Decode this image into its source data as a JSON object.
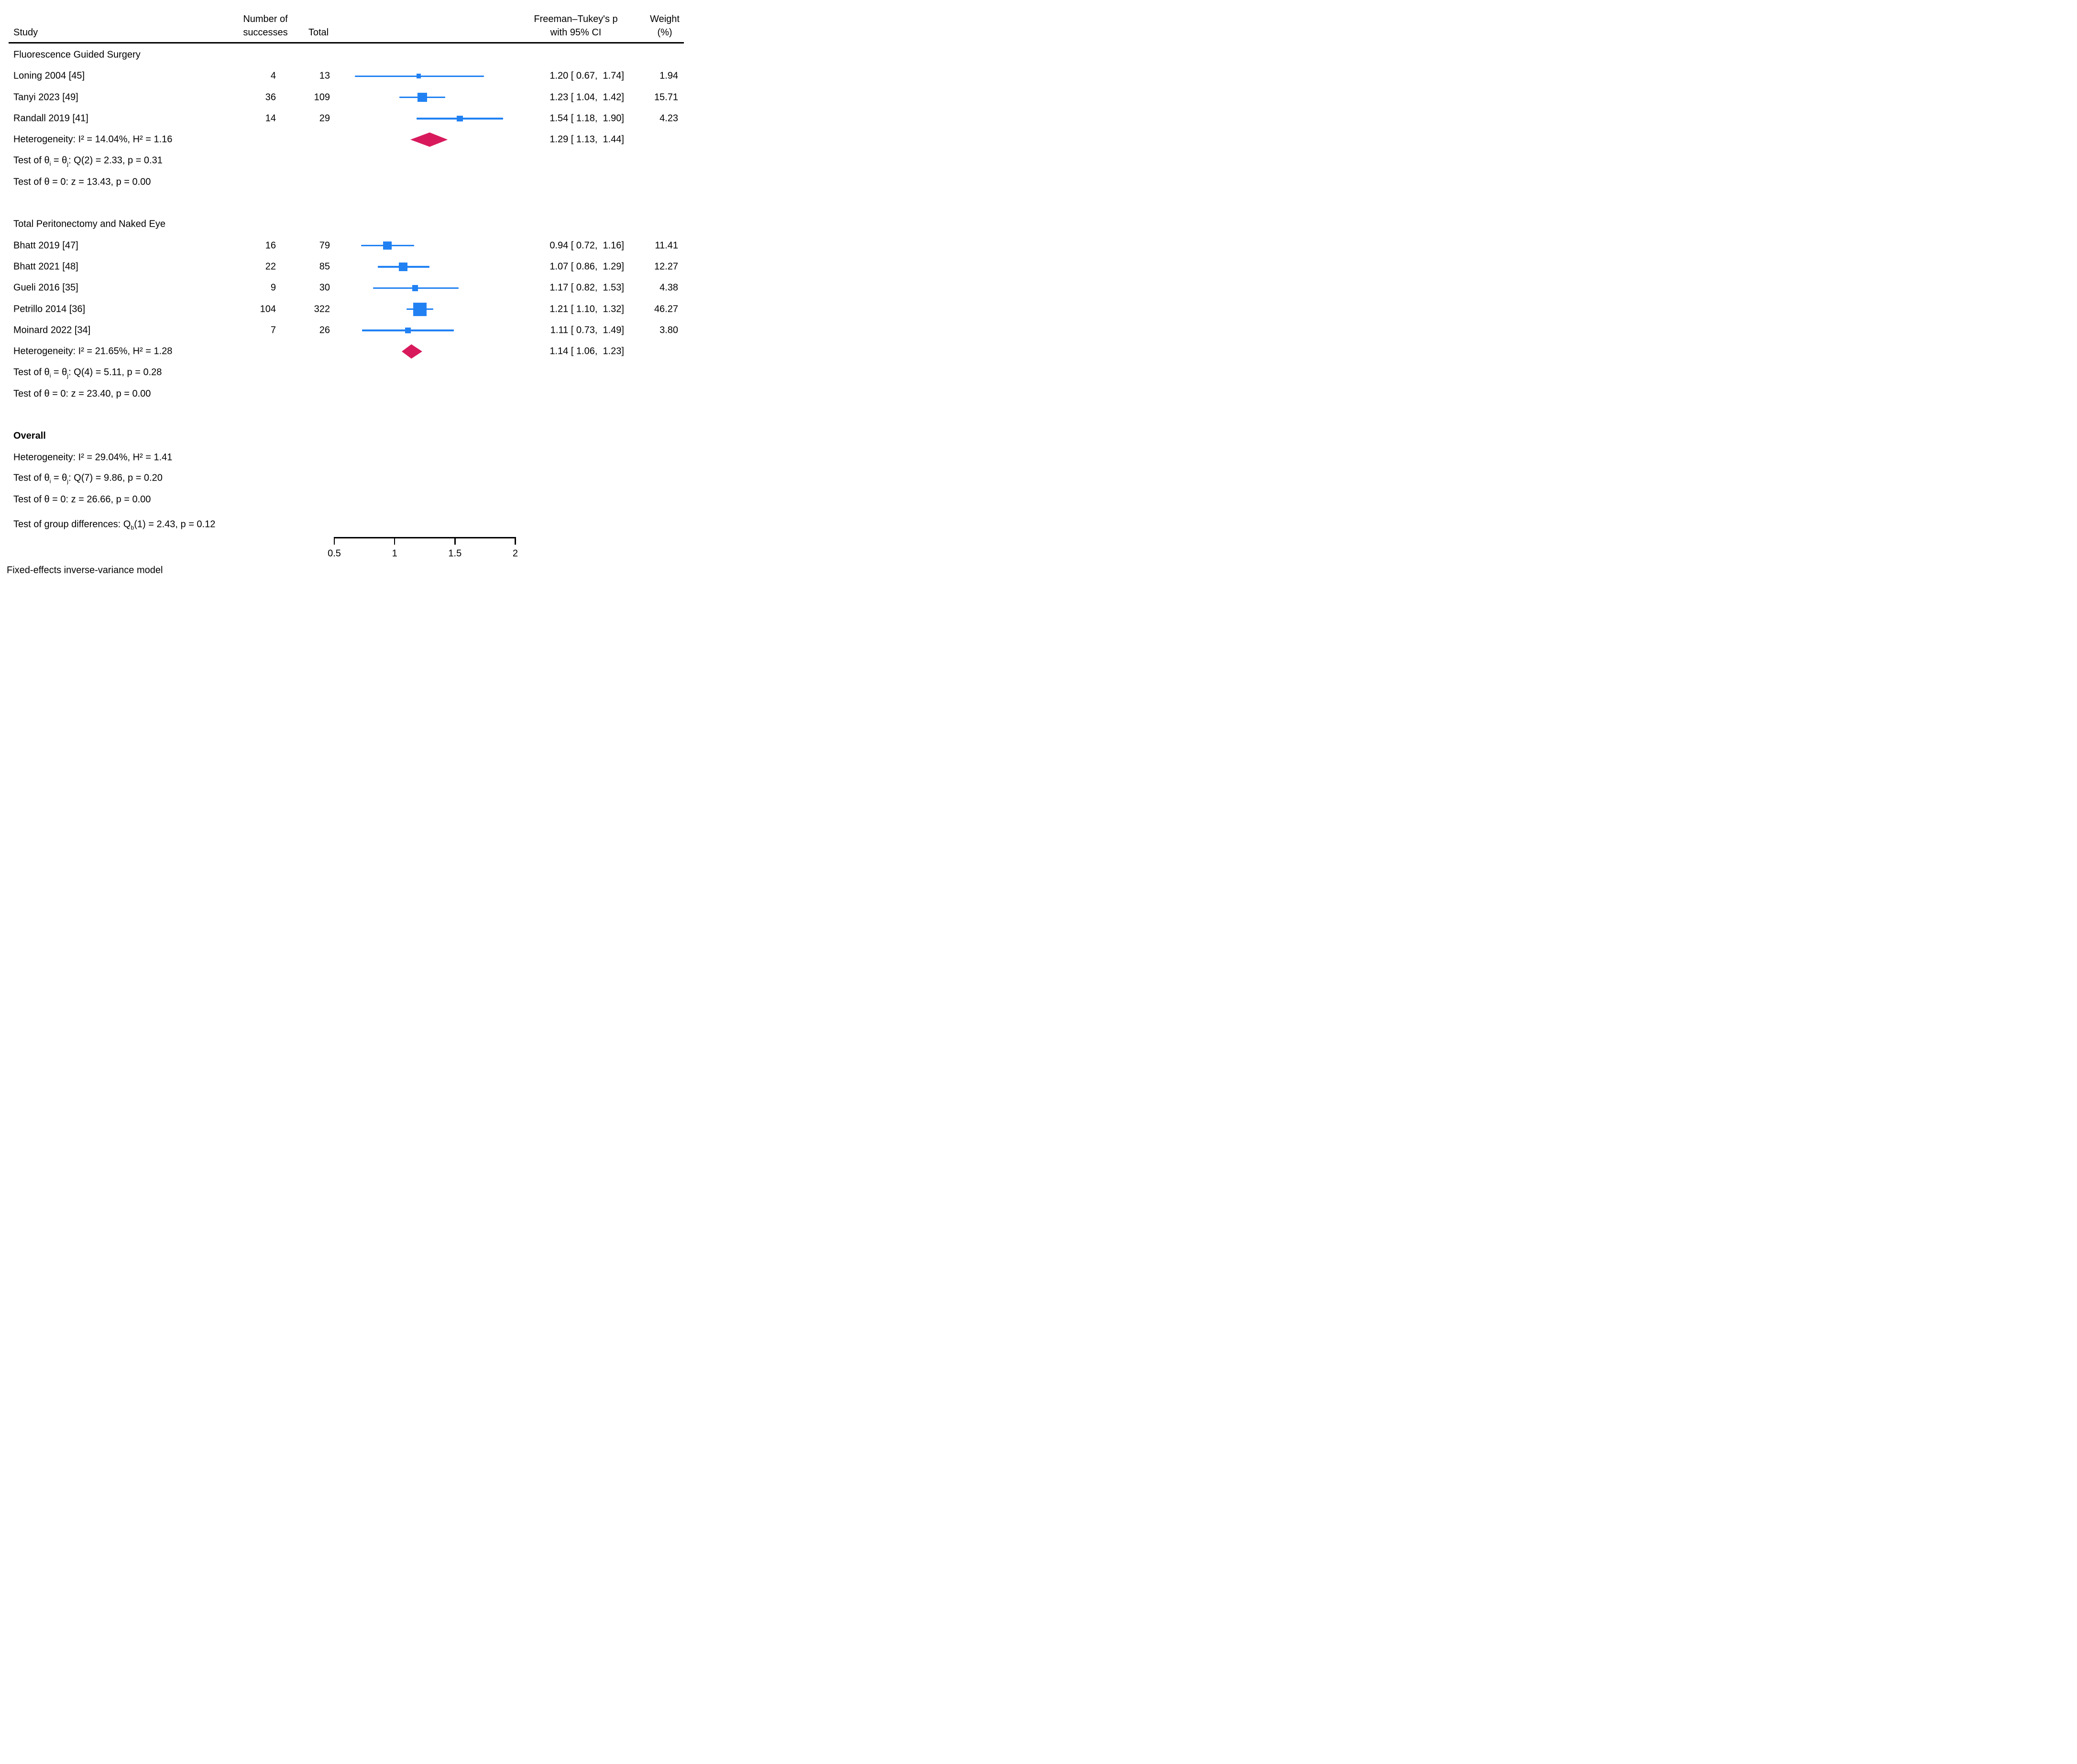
{
  "chart_data": {
    "type": "forest",
    "header": {
      "study": "Study",
      "successes_line1": "Number of",
      "successes_line2": "successes",
      "total": "Total",
      "effect_line1": "Freeman–Tukey's p",
      "effect_line2": "with 95% CI",
      "weight_line1": "Weight",
      "weight_line2": "(%)"
    },
    "axis": {
      "min": 0.5,
      "max": 2,
      "ticks": [
        {
          "value": 0.5,
          "label": "0.5"
        },
        {
          "value": 1,
          "label": "1"
        },
        {
          "value": 1.5,
          "label": "1.5"
        },
        {
          "value": 2,
          "label": "2"
        }
      ]
    },
    "groups": [
      {
        "label": "Fluorescence Guided Surgery",
        "studies": [
          {
            "label": "Loning 2004 [45]",
            "successes": "4",
            "total": "13",
            "est": 1.2,
            "lo": 0.67,
            "hi": 1.74,
            "ci_text": "1.20 [ 0.67,  1.74]",
            "weight": "1.94"
          },
          {
            "label": "Tanyi 2023 [49]",
            "successes": "36",
            "total": "109",
            "est": 1.23,
            "lo": 1.04,
            "hi": 1.42,
            "ci_text": "1.23 [ 1.04,  1.42]",
            "weight": "15.71"
          },
          {
            "label": "Randall 2019 [41]",
            "successes": "14",
            "total": "29",
            "est": 1.54,
            "lo": 1.18,
            "hi": 1.9,
            "ci_text": "1.54 [ 1.18,  1.90]",
            "weight": "4.23"
          }
        ],
        "summary": {
          "est": 1.29,
          "lo": 1.13,
          "hi": 1.44,
          "ci_text": "1.29 [ 1.13,  1.44]",
          "heterogeneity": "Heterogeneity: I² = 14.04%, H² = 1.16"
        },
        "tests": [
          {
            "parts": [
              {
                "t": "Test of θ"
              },
              {
                "sub": "i"
              },
              {
                "t": " = θ"
              },
              {
                "sub": "j"
              },
              {
                "t": ": Q(2) = 2.33, p = 0.31"
              }
            ]
          },
          {
            "parts": [
              {
                "t": "Test of θ = 0: z = 13.43, p = 0.00"
              }
            ]
          }
        ]
      },
      {
        "label": "Total Peritonectomy and Naked Eye",
        "studies": [
          {
            "label": "Bhatt 2019 [47]",
            "successes": "16",
            "total": "79",
            "est": 0.94,
            "lo": 0.72,
            "hi": 1.16,
            "ci_text": "0.94 [ 0.72,  1.16]",
            "weight": "11.41"
          },
          {
            "label": "Bhatt 2021 [48]",
            "successes": "22",
            "total": "85",
            "est": 1.07,
            "lo": 0.86,
            "hi": 1.29,
            "ci_text": "1.07 [ 0.86,  1.29]",
            "weight": "12.27"
          },
          {
            "label": "Gueli 2016 [35]",
            "successes": "9",
            "total": "30",
            "est": 1.17,
            "lo": 0.82,
            "hi": 1.53,
            "ci_text": "1.17 [ 0.82,  1.53]",
            "weight": "4.38"
          },
          {
            "label": "Petrillo 2014 [36]",
            "successes": "104",
            "total": "322",
            "est": 1.21,
            "lo": 1.1,
            "hi": 1.32,
            "ci_text": "1.21 [ 1.10,  1.32]",
            "weight": "46.27"
          },
          {
            "label": "Moinard 2022 [34]",
            "successes": "7",
            "total": "26",
            "est": 1.11,
            "lo": 0.73,
            "hi": 1.49,
            "ci_text": "1.11 [ 0.73,  1.49]",
            "weight": "3.80"
          }
        ],
        "summary": {
          "est": 1.14,
          "lo": 1.06,
          "hi": 1.23,
          "ci_text": "1.14 [ 1.06,  1.23]",
          "heterogeneity": "Heterogeneity: I² = 21.65%, H² = 1.28"
        },
        "tests": [
          {
            "parts": [
              {
                "t": "Test of θ"
              },
              {
                "sub": "i"
              },
              {
                "t": " = θ"
              },
              {
                "sub": "j"
              },
              {
                "t": ": Q(4) = 5.11, p = 0.28"
              }
            ]
          },
          {
            "parts": [
              {
                "t": "Test of θ = 0: z = 23.40, p = 0.00"
              }
            ]
          }
        ]
      }
    ],
    "overall": {
      "label": "Overall",
      "lines": [
        {
          "parts": [
            {
              "t": "Heterogeneity: I² = 29.04%, H² = 1.41"
            }
          ]
        },
        {
          "parts": [
            {
              "t": "Test of θ"
            },
            {
              "sub": "i"
            },
            {
              "t": " = θ"
            },
            {
              "sub": "j"
            },
            {
              "t": ": Q(7) = 9.86, p = 0.20"
            }
          ]
        },
        {
          "parts": [
            {
              "t": "Test of θ = 0: z = 26.66, p = 0.00"
            }
          ]
        }
      ],
      "group_diff": {
        "parts": [
          {
            "t": "Test of group differences: Q"
          },
          {
            "sub": "b"
          },
          {
            "t": "(1) = 2.43, p = 0.12"
          }
        ]
      }
    },
    "footnote": "Fixed-effects inverse-variance model",
    "colors": {
      "marker_blue": "#2181f3",
      "diamond_red": "#d81a5c",
      "text": "#000000"
    }
  }
}
